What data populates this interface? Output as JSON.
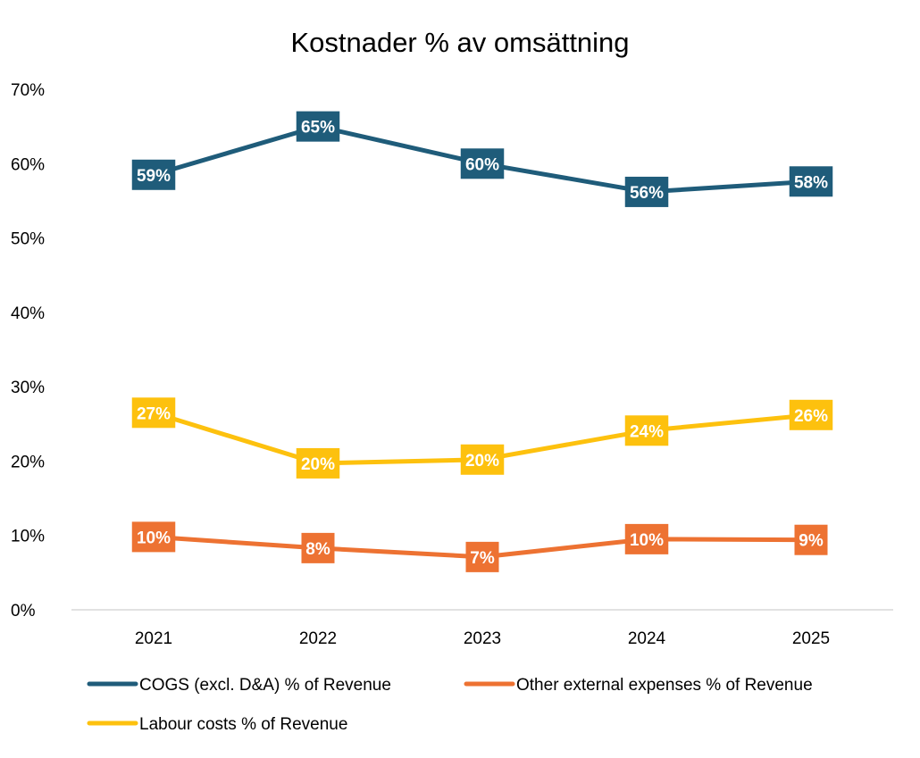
{
  "chart_data": {
    "type": "line",
    "title": "Kostnader % av omsättning",
    "categories": [
      "2021",
      "2022",
      "2023",
      "2024",
      "2025"
    ],
    "yticks": [
      "0%",
      "10%",
      "20%",
      "30%",
      "40%",
      "50%",
      "60%",
      "70%"
    ],
    "ylim": [
      0,
      70
    ],
    "grid": false,
    "legend_position": "bottom",
    "series": [
      {
        "name": "COGS (excl. D&A) % of Revenue",
        "color": "#1f5c7a",
        "values": [
          58.5,
          65,
          60,
          56.2,
          57.6
        ],
        "labels": [
          "59%",
          "65%",
          "60%",
          "56%",
          "58%"
        ]
      },
      {
        "name": "Other external expenses % of Revenue",
        "color": "#ed7232",
        "values": [
          9.8,
          8.3,
          7.1,
          9.5,
          9.4
        ],
        "labels": [
          "10%",
          "8%",
          "7%",
          "10%",
          "9%"
        ]
      },
      {
        "name": "Labour costs % of Revenue",
        "color": "#fdc10e",
        "values": [
          26.5,
          19.7,
          20.2,
          24.1,
          26.2
        ],
        "labels": [
          "27%",
          "20%",
          "20%",
          "24%",
          "26%"
        ]
      }
    ]
  }
}
